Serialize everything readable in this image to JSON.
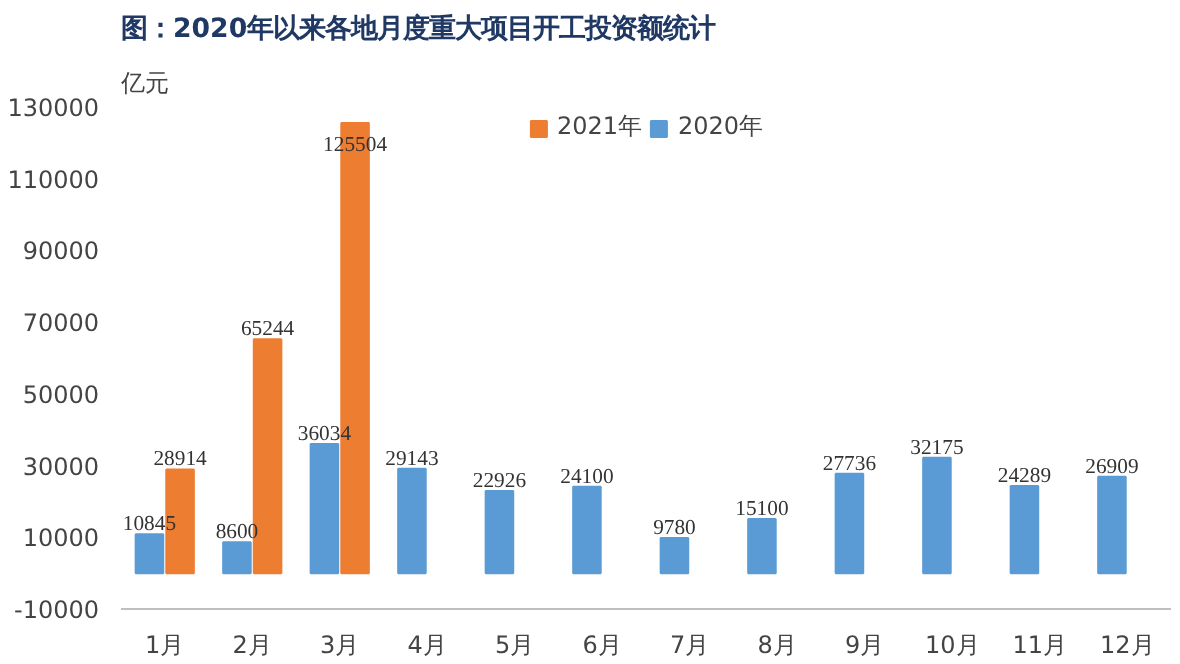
{
  "chart_data": {
    "type": "bar",
    "title": "图：2020年以来各地月度重大项目开工投资额统计",
    "ylabel": "亿元",
    "categories": [
      "1月",
      "2月",
      "3月",
      "4月",
      "5月",
      "6月",
      "7月",
      "8月",
      "9月",
      "10月",
      "11月",
      "12月"
    ],
    "series": [
      {
        "name": "2020年",
        "color": "#5b9bd5",
        "values": [
          10845,
          8600,
          36034,
          29143,
          22926,
          24100,
          9780,
          15100,
          27736,
          32175,
          24289,
          26909
        ]
      },
      {
        "name": "2021年",
        "color": "#ed7d31",
        "values": [
          28914,
          65244,
          125504,
          null,
          null,
          null,
          null,
          null,
          null,
          null,
          null,
          null
        ]
      }
    ],
    "ylim": [
      -10000,
      130000
    ],
    "yticks": [
      -10000,
      10000,
      30000,
      50000,
      70000,
      90000,
      110000,
      130000
    ],
    "data_labels": true,
    "legend": "top",
    "grid": false
  }
}
